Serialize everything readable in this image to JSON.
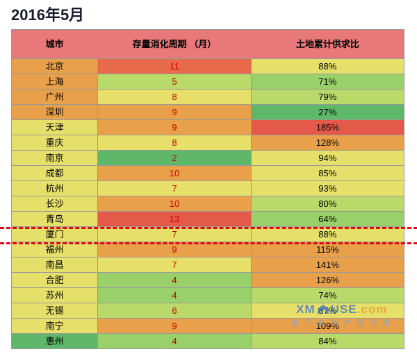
{
  "title": "2016年5月",
  "columns": [
    "城市",
    "存量消化周期\n（月）",
    "土地累计供求比"
  ],
  "rows": [
    {
      "city": "北京",
      "cycle": "11",
      "ratio": "88%",
      "c0": "#e9a04a",
      "c1": "#e76a4a",
      "c2": "#e6e06a"
    },
    {
      "city": "上海",
      "cycle": "5",
      "ratio": "71%",
      "c0": "#e9a04a",
      "c1": "#b9d96a",
      "c2": "#9ad06a"
    },
    {
      "city": "广州",
      "cycle": "8",
      "ratio": "79%",
      "c0": "#e9a04a",
      "c1": "#e6e06a",
      "c2": "#b9d96a"
    },
    {
      "city": "深圳",
      "cycle": "9",
      "ratio": "27%",
      "c0": "#e9a04a",
      "c1": "#e9a04a",
      "c2": "#5fb86a"
    },
    {
      "city": "天津",
      "cycle": "9",
      "ratio": "185%",
      "c0": "#e6e06a",
      "c1": "#e9a04a",
      "c2": "#e35a4a"
    },
    {
      "city": "重庆",
      "cycle": "8",
      "ratio": "128%",
      "c0": "#e6e06a",
      "c1": "#e6e06a",
      "c2": "#e9a04a"
    },
    {
      "city": "南京",
      "cycle": "2",
      "ratio": "94%",
      "c0": "#e6e06a",
      "c1": "#5fb86a",
      "c2": "#e6e06a"
    },
    {
      "city": "成都",
      "cycle": "10",
      "ratio": "85%",
      "c0": "#e6e06a",
      "c1": "#e9a04a",
      "c2": "#e6e06a"
    },
    {
      "city": "杭州",
      "cycle": "7",
      "ratio": "93%",
      "c0": "#e6e06a",
      "c1": "#e6e06a",
      "c2": "#e6e06a"
    },
    {
      "city": "长沙",
      "cycle": "10",
      "ratio": "80%",
      "c0": "#e6e06a",
      "c1": "#e9a04a",
      "c2": "#b9d96a"
    },
    {
      "city": "青岛",
      "cycle": "13",
      "ratio": "64%",
      "c0": "#e6e06a",
      "c1": "#e35a4a",
      "c2": "#9ad06a"
    },
    {
      "city": "厦门",
      "cycle": "7",
      "ratio": "88%",
      "c0": "#e6e06a",
      "c1": "#e6e06a",
      "c2": "#e6e06a"
    },
    {
      "city": "福州",
      "cycle": "9",
      "ratio": "115%",
      "c0": "#e6e06a",
      "c1": "#e9a04a",
      "c2": "#e9a04a"
    },
    {
      "city": "南昌",
      "cycle": "7",
      "ratio": "141%",
      "c0": "#e6e06a",
      "c1": "#e6e06a",
      "c2": "#e9a04a"
    },
    {
      "city": "合肥",
      "cycle": "4",
      "ratio": "126%",
      "c0": "#e6e06a",
      "c1": "#9ad06a",
      "c2": "#e9a04a"
    },
    {
      "city": "苏州",
      "cycle": "4",
      "ratio": "74%",
      "c0": "#e6e06a",
      "c1": "#9ad06a",
      "c2": "#b9d96a"
    },
    {
      "city": "无锡",
      "cycle": "6",
      "ratio": "87%",
      "c0": "#e6e06a",
      "c1": "#b9d96a",
      "c2": "#e6e06a"
    },
    {
      "city": "南宁",
      "cycle": "9",
      "ratio": "109%",
      "c0": "#e6e06a",
      "c1": "#e9a04a",
      "c2": "#e9a04a"
    },
    {
      "city": "惠州",
      "cycle": "4",
      "ratio": "84%",
      "c0": "#5fb86a",
      "c1": "#9ad06a",
      "c2": "#b9d96a"
    }
  ],
  "highlight": {
    "row_index": 11,
    "dash_color": "#e30613"
  },
  "watermark": {
    "brand_left": "XM",
    "brand_right": "USE",
    "dot": ".com",
    "sub": "厦 门 房 地 产 联 合 网"
  }
}
